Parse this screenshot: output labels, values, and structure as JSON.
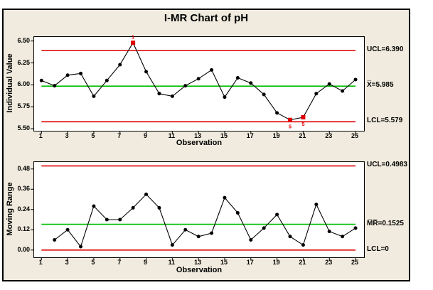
{
  "window": {
    "title": "I-MR Chart of pH"
  },
  "colors": {
    "background": "#f0ebde",
    "plot_background": "#ffffff",
    "limit_line_red": "#de0000",
    "center_line_green": "#00be00",
    "series_black": "#000000",
    "out_of_control_red": "#dd0000"
  },
  "chart_data": [
    {
      "type": "line",
      "name": "Individuals chart",
      "ylabel": "Individual Value",
      "xlabel": "Observation",
      "x": [
        1,
        2,
        3,
        4,
        5,
        6,
        7,
        8,
        9,
        10,
        11,
        12,
        13,
        14,
        15,
        16,
        17,
        18,
        19,
        20,
        21,
        22,
        23,
        24,
        25
      ],
      "values": [
        6.05,
        5.99,
        6.11,
        6.13,
        5.87,
        6.05,
        6.23,
        6.48,
        6.15,
        5.9,
        5.87,
        5.99,
        6.07,
        6.17,
        5.86,
        6.08,
        6.02,
        5.89,
        5.68,
        5.6,
        5.63,
        5.9,
        6.01,
        5.93,
        6.06
      ],
      "ylim": [
        5.476,
        6.546
      ],
      "xlim": [
        0.44,
        25.65
      ],
      "ytick_values": [
        6.5,
        6.25,
        6.0,
        5.75,
        5.5
      ],
      "ytick_labels": [
        "6.50",
        "6.25",
        "6.00",
        "5.75",
        "5.50"
      ],
      "xticks": [
        1,
        3,
        5,
        7,
        9,
        11,
        13,
        15,
        17,
        19,
        21,
        23,
        25
      ],
      "ucl": {
        "value": 6.39,
        "label": "UCL=6.390"
      },
      "center_line": {
        "value": 5.985,
        "label": "X̅=5.985"
      },
      "lcl": {
        "value": 5.579,
        "label": "LCL=5.579"
      },
      "out_of_control": [
        {
          "x": 8,
          "flag": "1",
          "flag_position": "above"
        },
        {
          "x": 20,
          "flag": "5",
          "flag_position": "below"
        },
        {
          "x": 21,
          "flag": "5",
          "flag_position": "below"
        }
      ],
      "legend_position": "right-of-plot",
      "grid": false
    },
    {
      "type": "line",
      "name": "Moving Range chart",
      "ylabel": "Moving Range",
      "xlabel": "Observation",
      "x": [
        2,
        3,
        4,
        5,
        6,
        7,
        8,
        9,
        10,
        11,
        12,
        13,
        14,
        15,
        16,
        17,
        18,
        19,
        20,
        21,
        22,
        23,
        24,
        25
      ],
      "values": [
        0.06,
        0.12,
        0.02,
        0.26,
        0.18,
        0.18,
        0.25,
        0.33,
        0.25,
        0.03,
        0.12,
        0.08,
        0.1,
        0.31,
        0.22,
        0.06,
        0.13,
        0.21,
        0.08,
        0.03,
        0.27,
        0.11,
        0.08,
        0.13
      ],
      "ylim": [
        -0.043,
        0.521
      ],
      "xlim": [
        0.44,
        25.65
      ],
      "ytick_values": [
        0.48,
        0.36,
        0.24,
        0.12,
        0.0
      ],
      "ytick_labels": [
        "0.48",
        "0.36",
        "0.24",
        "0.12",
        "0.00"
      ],
      "xticks": [
        1,
        3,
        5,
        7,
        9,
        11,
        13,
        15,
        17,
        19,
        21,
        23,
        25
      ],
      "ucl": {
        "value": 0.4983,
        "label": "UCL=0.4983"
      },
      "center_line": {
        "value": 0.1525,
        "label": "M̅R̅=0.1525"
      },
      "lcl": {
        "value": 0,
        "label": "LCL=0"
      },
      "out_of_control": [],
      "legend_position": "right-of-plot",
      "grid": false
    }
  ]
}
